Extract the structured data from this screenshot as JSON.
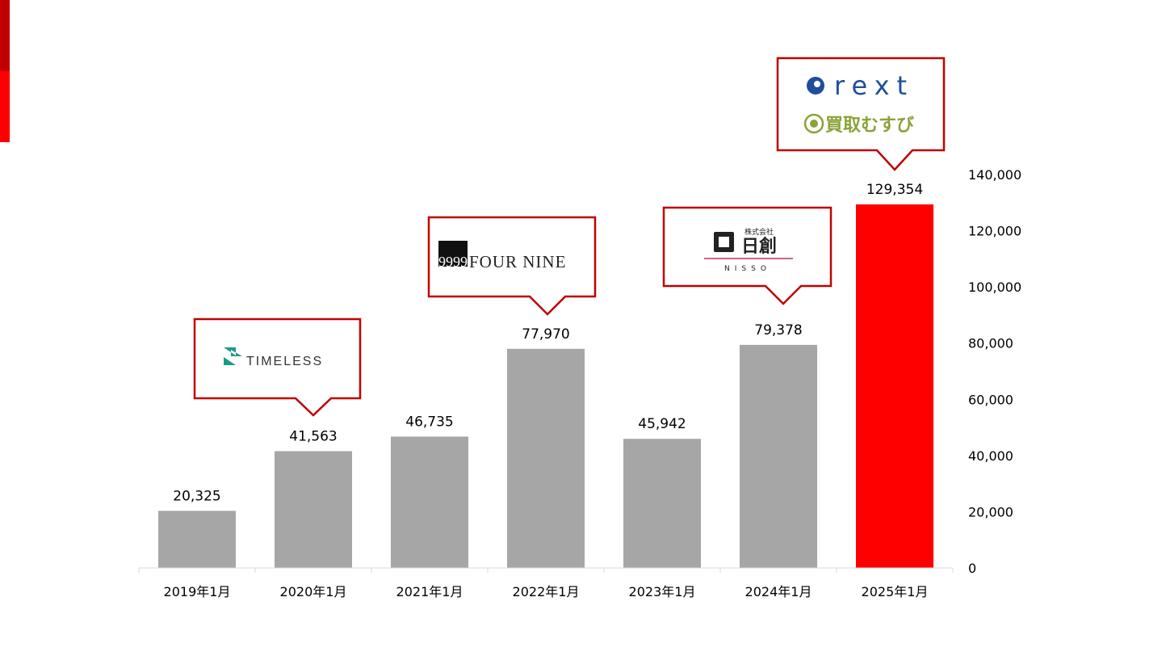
{
  "chart_data": {
    "type": "bar",
    "categories": [
      "2019年1月",
      "2020年1月",
      "2021年1月",
      "2022年1月",
      "2023年1月",
      "2024年1月",
      "2025年1月"
    ],
    "values": [
      20325,
      41563,
      46735,
      77970,
      45942,
      79378,
      129354
    ],
    "value_labels": [
      "20,325",
      "41,563",
      "46,735",
      "77,970",
      "45,942",
      "79,378",
      "129,354"
    ],
    "highlight_index": 6,
    "y_axis_side": "right",
    "ylim": [
      0,
      140000
    ],
    "y_ticks": [
      "0",
      "20,000",
      "40,000",
      "60,000",
      "80,000",
      "100,000",
      "120,000",
      "140,000"
    ],
    "grid": false,
    "legend": "none",
    "bar_color": "#a6a6a6",
    "highlight_color": "#ff0000"
  },
  "callouts": [
    {
      "bar_index": 1,
      "logo": "timeless-logo",
      "lines": [
        "TIMELESS"
      ]
    },
    {
      "bar_index": 3,
      "logo": "fournine-logo",
      "lines": [
        "9999",
        "FOUR NINE"
      ]
    },
    {
      "bar_index": 5,
      "logo": "nisso-logo",
      "lines": [
        "株式会社",
        "日創",
        "NISSO"
      ]
    },
    {
      "bar_index": 6,
      "logo": "rext-kaitori-musubi-logo",
      "lines": [
        "rext",
        "買取むすび"
      ]
    }
  ],
  "colors": {
    "callout_border": "#c00000",
    "timeless_teal": "#1a9a8a",
    "rext_blue": "#1f4e9c",
    "musubi_green": "#8aa33a",
    "nisso_pink": "#c0306a"
  }
}
